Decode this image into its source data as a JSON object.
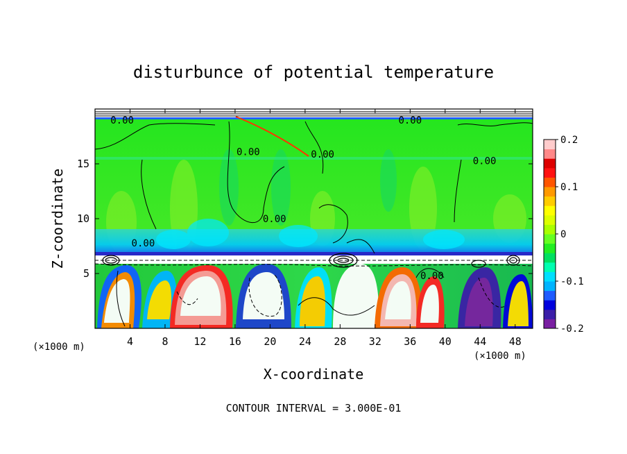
{
  "chart_data": {
    "type": "heatmap",
    "title": "disturbunce of potential temperature",
    "xlabel": "X-coordinate",
    "ylabel": "Z-coordinate",
    "x_unit_label_left": "(×1000 m)",
    "y_unit_label": "(×1000 m)",
    "xlim": [
      0,
      50
    ],
    "ylim": [
      0,
      20
    ],
    "x_ticks": [
      4,
      8,
      12,
      16,
      20,
      24,
      28,
      32,
      36,
      40,
      44,
      48
    ],
    "y_ticks": [
      5,
      10,
      15
    ],
    "colorbar": {
      "range": [
        -0.2,
        0.2
      ],
      "tick_labels": [
        "0.2",
        "0.1",
        "0",
        "-0.1",
        "-0.2"
      ],
      "tick_values": [
        0.2,
        0.1,
        0,
        -0.1,
        -0.2
      ],
      "colors": [
        "#7a1fa2",
        "#3b1ea8",
        "#0000dd",
        "#1e5bff",
        "#00b4ff",
        "#00e0ff",
        "#00ffb0",
        "#00e060",
        "#22ee22",
        "#66ff22",
        "#aaff00",
        "#ddff00",
        "#ffff00",
        "#ffcc00",
        "#ff9900",
        "#ff5500",
        "#ff1111",
        "#dd0000",
        "#ff8888",
        "#ffcccc"
      ]
    },
    "contour_labels": [
      {
        "text": "0.00",
        "x": 3.1,
        "z": 19.0
      },
      {
        "text": "0.00",
        "x": 17.5,
        "z": 16.1
      },
      {
        "text": "0.00",
        "x": 26.0,
        "z": 15.9
      },
      {
        "text": "0.00",
        "x": 36.0,
        "z": 19.0
      },
      {
        "text": "0.00",
        "x": 44.5,
        "z": 15.3
      },
      {
        "text": "0.00",
        "x": 5.5,
        "z": 7.8
      },
      {
        "text": "0.00",
        "x": 20.5,
        "z": 10.0
      },
      {
        "text": "0.00",
        "x": 38.5,
        "z": 4.8
      }
    ],
    "footer": "CONTOUR INTERVAL = 3.000E-01"
  }
}
